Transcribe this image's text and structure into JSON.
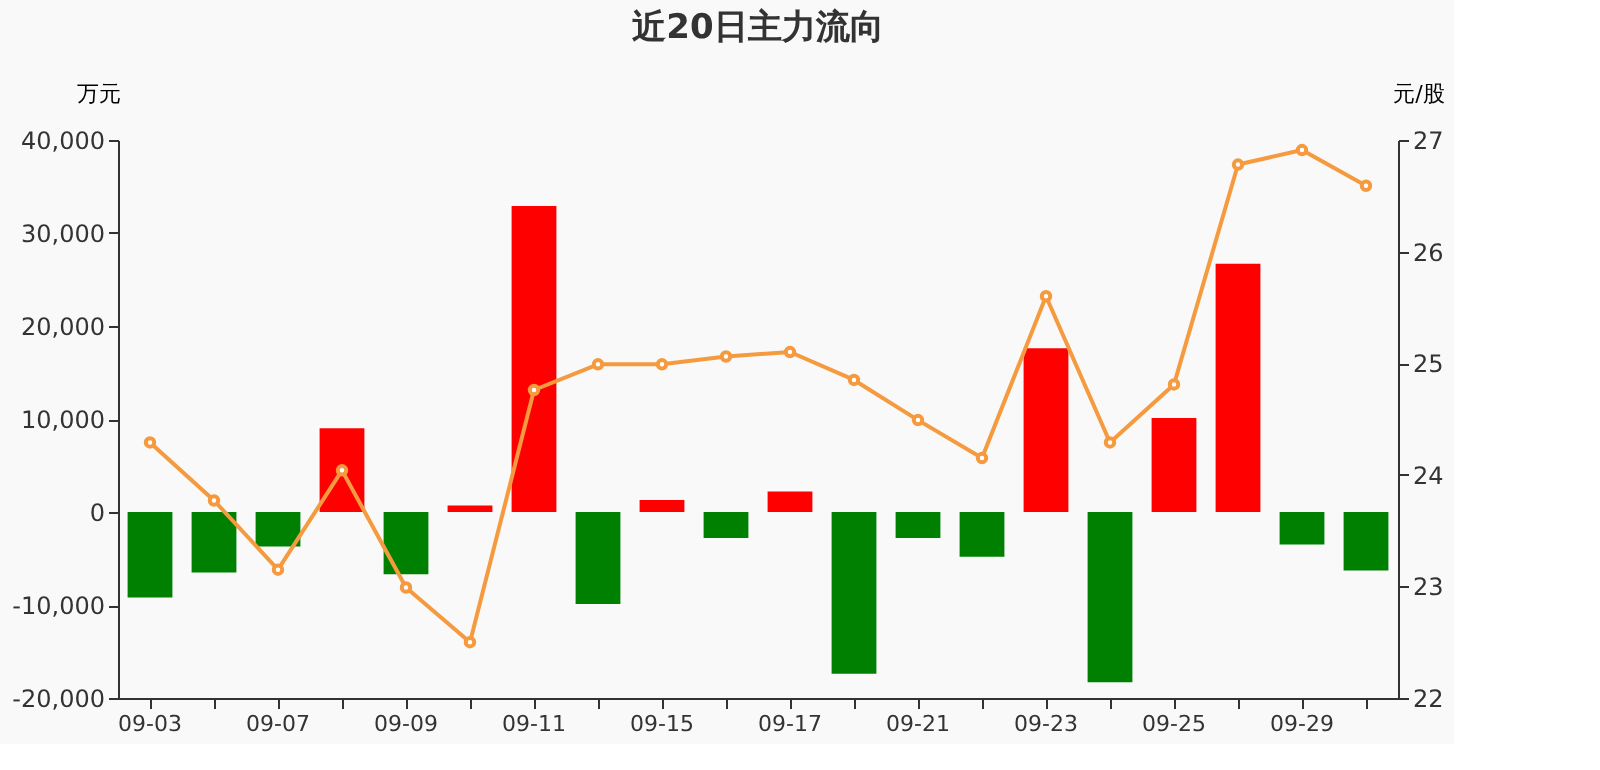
{
  "chart_data": {
    "type": "bar",
    "title": "近20日主力流向",
    "ylabel": "万元",
    "y2label": "元/股",
    "categories": [
      "09-03",
      null,
      "09-07",
      null,
      "09-09",
      null,
      "09-11",
      null,
      "09-15",
      null,
      "09-17",
      null,
      "09-21",
      null,
      "09-23",
      null,
      "09-25",
      null,
      "09-29",
      null
    ],
    "series": [
      {
        "colors": [
          "#008000",
          "#008000",
          "#008000",
          "#ff0000",
          "#008000",
          "#ff0000",
          "#ff0000",
          "#008000",
          "#ff0000",
          "#008000",
          "#ff0000",
          "#008000",
          "#008000",
          "#008000",
          "#ff0000",
          "#008000",
          "#ff0000",
          "#ff0000",
          "#008000",
          "#008000"
        ],
        "values": [
          -9200,
          -6500,
          -3700,
          9000,
          -6700,
          700,
          32900,
          -9900,
          1300,
          -2800,
          2200,
          -17400,
          -2800,
          -4800,
          17600,
          -18300,
          10100,
          26700,
          -3500,
          -6300
        ]
      },
      {
        "type": "line",
        "axis": "y2",
        "color": "#f59a3f",
        "marker": "circle",
        "values": [
          24.29,
          23.77,
          23.15,
          24.04,
          22.99,
          22.5,
          24.76,
          24.99,
          24.99,
          25.06,
          25.1,
          24.85,
          24.49,
          24.15,
          25.6,
          24.29,
          24.81,
          26.78,
          26.91,
          26.59
        ]
      }
    ],
    "ylim": [
      -20000,
      40000
    ],
    "yticks": [
      {
        "value": -20000,
        "label": "-20,000"
      },
      {
        "value": -10000,
        "label": "-10,000"
      },
      0,
      {
        "value": 10000,
        "label": "10,000"
      },
      {
        "value": 20000,
        "label": "20,000"
      },
      {
        "value": 30000,
        "label": "30,000"
      },
      {
        "value": 40000,
        "label": "40,000"
      }
    ],
    "y2lim": [
      22,
      27
    ],
    "y2ticks": [
      22,
      23,
      24,
      25,
      26,
      27
    ],
    "grid": false
  }
}
